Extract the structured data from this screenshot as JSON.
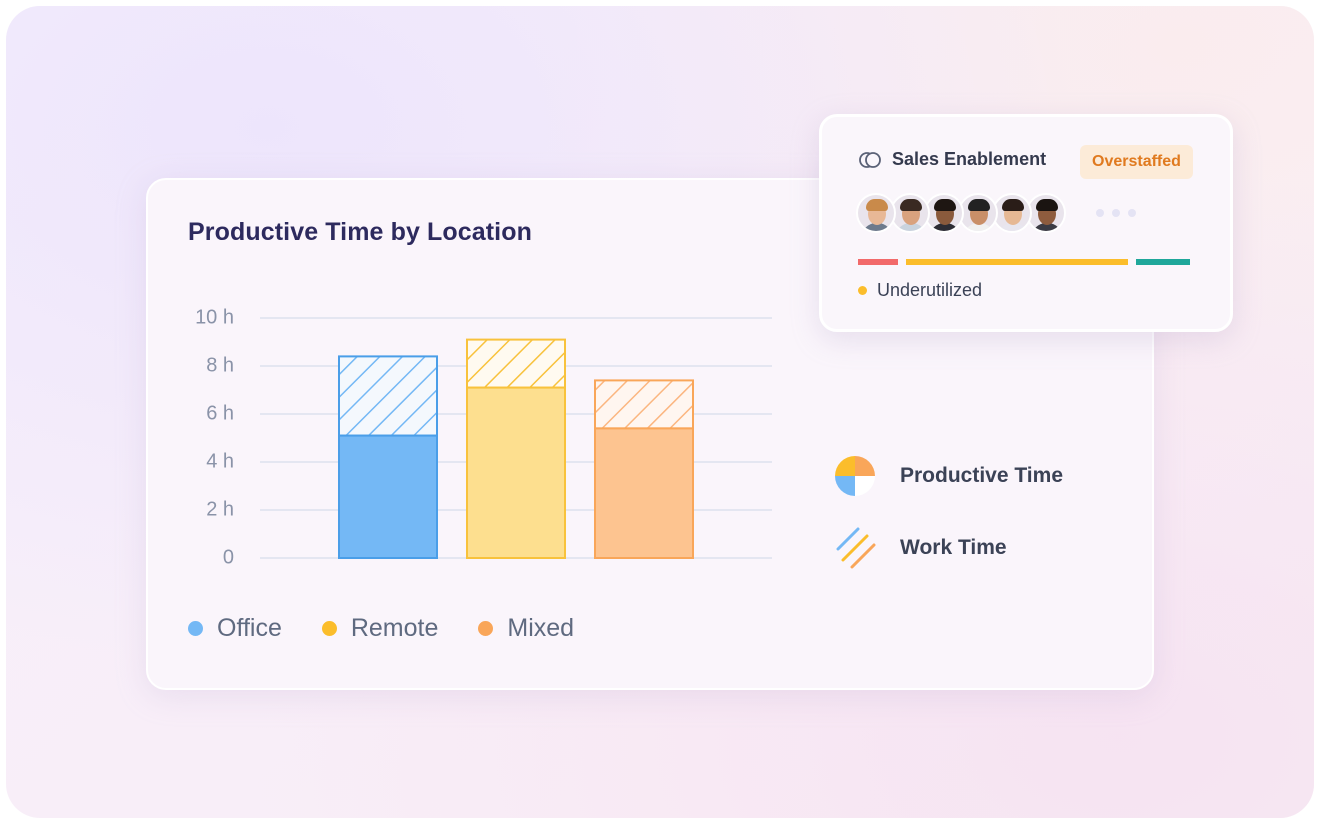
{
  "colors": {
    "office": "#74b8f5",
    "office_stroke": "#4a9ee8",
    "remote": "#fddf8f",
    "remote_stroke": "#f8c23c",
    "mixed": "#fdc490",
    "mixed_stroke": "#f9a659",
    "grid": "#dde2ee",
    "axis_text": "#8a93a8",
    "bar_red": "#f26a6a",
    "bar_yellow": "#fbbd2b",
    "bar_teal": "#1fa79a"
  },
  "chart_data": {
    "type": "bar",
    "title": "Productive Time by Location",
    "categories": [
      "Office",
      "Remote",
      "Mixed"
    ],
    "series": [
      {
        "name": "Productive Time",
        "values": [
          5.1,
          7.1,
          5.4
        ]
      },
      {
        "name": "Work Time",
        "values": [
          8.4,
          9.1,
          7.4
        ]
      }
    ],
    "ylim": [
      0,
      10
    ],
    "yticks": [
      {
        "value": 10,
        "label": "10 h"
      },
      {
        "value": 8,
        "label": "8 h"
      },
      {
        "value": 6,
        "label": "6 h"
      },
      {
        "value": 4,
        "label": "4 h"
      },
      {
        "value": 2,
        "label": "2 h"
      },
      {
        "value": 0,
        "label": "0"
      }
    ],
    "grid": true,
    "legend": [
      {
        "label": "Office",
        "color": "#74b8f5"
      },
      {
        "label": "Remote",
        "color": "#fbbd2b"
      },
      {
        "label": "Mixed",
        "color": "#f9a659"
      }
    ],
    "type_legend": [
      {
        "label": "Productive Time",
        "icon": "quarter-pie-icon"
      },
      {
        "label": "Work Time",
        "icon": "diagonal-stripes-icon"
      }
    ]
  },
  "team_card": {
    "name": "Sales Enablement",
    "icon": "team-rings-icon",
    "status": "Overstaffed",
    "avatars": [
      {
        "skin": "#e8b896",
        "hair": "#c98a4a",
        "shirt": "#6d7a8c"
      },
      {
        "skin": "#d9a27e",
        "hair": "#3a2a22",
        "shirt": "#c9d3de"
      },
      {
        "skin": "#8a5a3c",
        "hair": "#1e1612",
        "shirt": "#2c2c34"
      },
      {
        "skin": "#c98f68",
        "hair": "#222222",
        "shirt": "#f1f1f1"
      },
      {
        "skin": "#e6b894",
        "hair": "#2a1d18",
        "shirt": "#e8e6ef"
      },
      {
        "skin": "#8e5c3e",
        "hair": "#1a1411",
        "shirt": "#3b3b44"
      }
    ],
    "utilization_segments": [
      {
        "color": "#f26a6a",
        "share": 0.12
      },
      {
        "color": "#fbbd2b",
        "share": 0.66
      },
      {
        "color": "#1fa79a",
        "share": 0.16
      }
    ],
    "utilization_label": "Underutilized",
    "utilization_dot_color": "#fbbd2b"
  }
}
